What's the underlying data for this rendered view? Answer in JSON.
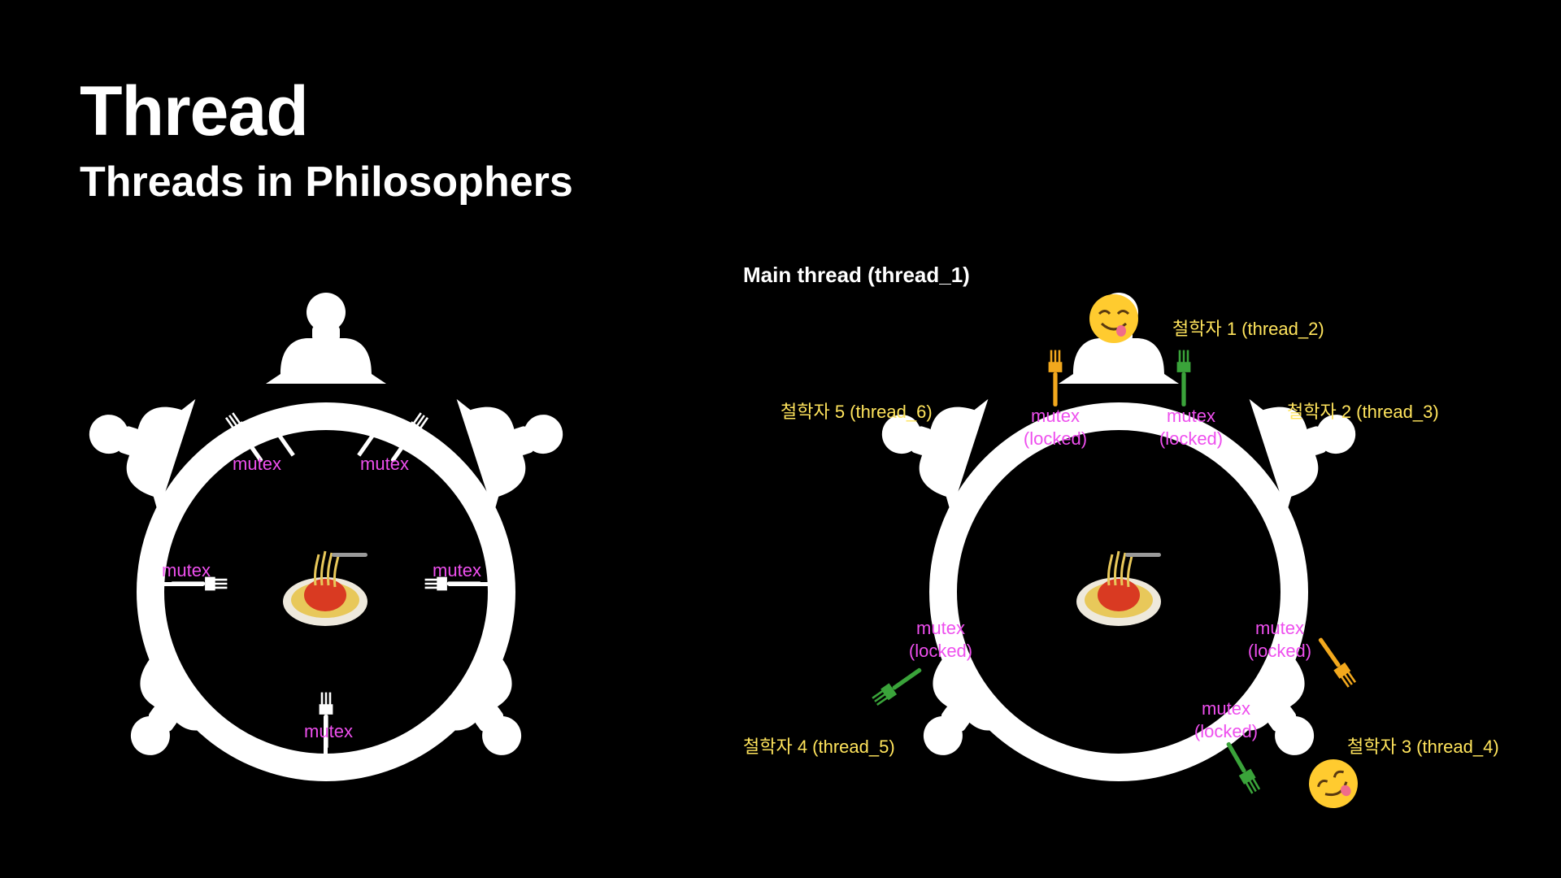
{
  "title": "Thread",
  "subtitle": "Threads in Philosophers",
  "main_thread_label": "Main thread (thread_1)",
  "left_diagram": {
    "mutex_labels": [
      "mutex",
      "mutex",
      "mutex",
      "mutex",
      "mutex"
    ]
  },
  "right_diagram": {
    "mutex_word": "mutex",
    "locked_word": "(locked)",
    "philosophers": [
      "철학자 1 (thread_2)",
      "철학자 2 (thread_3)",
      "철학자 3 (thread_4)",
      "철학자 4 (thread_5)",
      "철학자 5 (thread_6)"
    ]
  },
  "colors": {
    "background": "#000000",
    "silhouette": "#ffffff",
    "mutex_text": "#ee4fee",
    "philosopher_text": "#ffe45c",
    "fork_orange": "#f2a81d",
    "fork_green": "#3aa33a"
  },
  "icons": [
    "spaghetti-icon",
    "fork-icon",
    "eating-face-icon",
    "person-silhouette-icon"
  ]
}
